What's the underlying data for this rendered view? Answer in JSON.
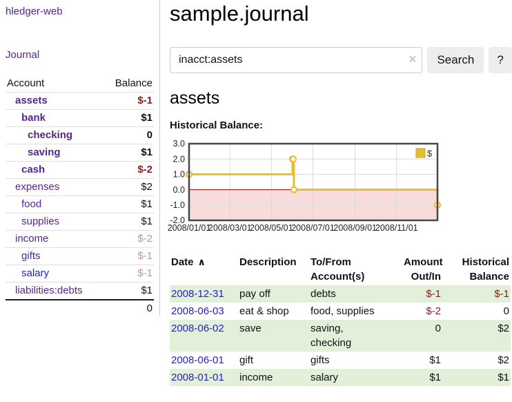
{
  "theme": {
    "purple": "#54278f",
    "blue": "#1f1fd0",
    "neg": "#8c1c1c",
    "neg-faded": "#c59595",
    "row-green": "#e2efd9",
    "grid": "#d9d9d9",
    "border-gray": "#cccccc"
  },
  "sidebar": {
    "brand": "hledger-web",
    "nav_journal": "Journal",
    "accounts_table": {
      "col_account": "Account",
      "col_balance": "Balance",
      "rows": [
        {
          "name": "assets",
          "balance": "$-1",
          "depth": 1,
          "bold": true,
          "balance_tone": "neg",
          "link_tone": "purple"
        },
        {
          "name": "bank",
          "balance": "$1",
          "depth": 2,
          "bold": true,
          "balance_tone": "normal",
          "link_tone": "purple"
        },
        {
          "name": "checking",
          "balance": "0",
          "depth": 3,
          "bold": true,
          "balance_tone": "normal",
          "link_tone": "purple"
        },
        {
          "name": "saving",
          "balance": "$1",
          "depth": 3,
          "bold": true,
          "balance_tone": "normal",
          "link_tone": "purple"
        },
        {
          "name": "cash",
          "balance": "$-2",
          "depth": 2,
          "bold": true,
          "balance_tone": "neg",
          "link_tone": "purple"
        },
        {
          "name": "expenses",
          "balance": "$2",
          "depth": 1,
          "bold": false,
          "balance_tone": "normal",
          "link_tone": "purple"
        },
        {
          "name": "food",
          "balance": "$1",
          "depth": 2,
          "bold": false,
          "balance_tone": "normal",
          "link_tone": "purple"
        },
        {
          "name": "supplies",
          "balance": "$1",
          "depth": 2,
          "bold": false,
          "balance_tone": "normal",
          "link_tone": "purple"
        },
        {
          "name": "income",
          "balance": "$-2",
          "depth": 1,
          "bold": false,
          "balance_tone": "neg-faded",
          "link_tone": "purple"
        },
        {
          "name": "gifts",
          "balance": "$-1",
          "depth": 2,
          "bold": false,
          "balance_tone": "neg-faded",
          "link_tone": "purple"
        },
        {
          "name": "salary",
          "balance": "$-1",
          "depth": 2,
          "bold": false,
          "balance_tone": "neg-faded",
          "link_tone": "blue"
        },
        {
          "name": "liabilities:debts",
          "balance": "$1",
          "depth": 1,
          "bold": false,
          "balance_tone": "normal",
          "link_tone": "purple"
        }
      ],
      "total": "0"
    }
  },
  "main": {
    "title": "sample.journal",
    "search": {
      "value": "inacct:assets",
      "clear_icon": "×",
      "search_button": "Search",
      "help_button": "?"
    },
    "account_heading": "assets",
    "chart_heading": "Historical Balance:"
  },
  "chart_data": {
    "type": "line",
    "step": true,
    "title": "Historical Balance:",
    "series": [
      {
        "name": "$",
        "x": [
          "2008-01-01",
          "2008-06-01",
          "2008-06-02",
          "2008-06-03",
          "2008-12-31"
        ],
        "y": [
          1,
          2,
          2,
          0,
          -1
        ]
      }
    ],
    "xlim": [
      "2008-01-01",
      "2008-12-31"
    ],
    "ylim": [
      -2,
      3
    ],
    "yticks": [
      3,
      2,
      1,
      0,
      -1,
      -2
    ],
    "ytick_labels": [
      "3.0",
      "2.0",
      "1.0",
      "0.0",
      "-1.0",
      "-2.0"
    ],
    "xticks": [
      "2008-01-01",
      "2008-03-01",
      "2008-05-01",
      "2008-07-01",
      "2008-09-01",
      "2008-11-01"
    ],
    "xtick_labels": [
      "2008/01/01",
      "2008/03/01",
      "2008/05/01",
      "2008/07/01",
      "2008/09/01",
      "2008/11/01"
    ],
    "legend": {
      "position": "top-right",
      "entries": [
        "$"
      ]
    },
    "grid": true,
    "colors": {
      "line": "#e6bf2f",
      "marker_fill": "#ffffff",
      "negative_region": "#f8dcdc",
      "zero_line": "#8b0000",
      "grid": "#d9d9d9",
      "border": "#474747",
      "legend_box_stroke": "#c5a42c",
      "tick_text": "#222222"
    }
  },
  "register": {
    "headers": {
      "date": "Date",
      "sort_icon": "∧",
      "description": "Description",
      "accounts": "To/From Account(s)",
      "amount": "Amount Out/In",
      "balance": "Historical Balance"
    },
    "rows": [
      {
        "date": "2008-12-31",
        "description": "pay off",
        "accounts": "debts",
        "amount": "$-1",
        "amount_tone": "neg",
        "balance": "$-1",
        "balance_tone": "neg"
      },
      {
        "date": "2008-06-03",
        "description": "eat & shop",
        "accounts": "food, supplies",
        "amount": "$-2",
        "amount_tone": "neg",
        "balance": "0",
        "balance_tone": "normal"
      },
      {
        "date": "2008-06-02",
        "description": "save",
        "accounts": "saving,\nchecking",
        "amount": "0",
        "amount_tone": "normal",
        "balance": "$2",
        "balance_tone": "normal"
      },
      {
        "date": "2008-06-01",
        "description": "gift",
        "accounts": "gifts",
        "amount": "$1",
        "amount_tone": "normal",
        "balance": "$2",
        "balance_tone": "normal"
      },
      {
        "date": "2008-01-01",
        "description": "income",
        "accounts": "salary",
        "amount": "$1",
        "amount_tone": "normal",
        "balance": "$1",
        "balance_tone": "normal"
      }
    ]
  }
}
